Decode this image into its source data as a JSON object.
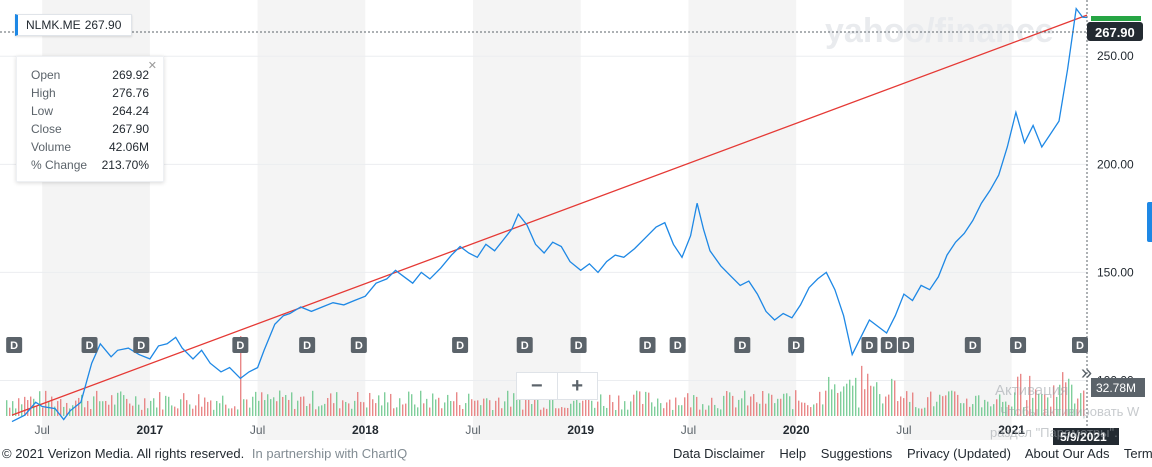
{
  "symbol": "NLMK.ME",
  "last_price": "267.90",
  "watermark": "yahoo/finance",
  "tooltip": {
    "rows": [
      {
        "label": "Open",
        "value": "269.92"
      },
      {
        "label": "High",
        "value": "276.76"
      },
      {
        "label": "Low",
        "value": "264.24"
      },
      {
        "label": "Close",
        "value": "267.90"
      },
      {
        "label": "Volume",
        "value": "42.06M"
      },
      {
        "label": "% Change",
        "value": "213.70%"
      }
    ],
    "close_icon": "close-icon"
  },
  "volume_label": "32.78M",
  "date_label": "5/9/2021",
  "zoom": {
    "minus": "−",
    "plus": "+"
  },
  "expand_icon": "»",
  "footer": {
    "copyright": "© 2021 Verizon Media. All rights reserved.",
    "partner": "In partnership with ChartIQ",
    "links": [
      "Data Disclaimer",
      "Help",
      "Suggestions",
      "Privacy (Updated)",
      "About Our Ads",
      "Terms (Upd"
    ]
  },
  "overlay_text": {
    "line1": "Активация",
    "line2": "Чтобы активировать W",
    "line3": "раздел \"Параметры\"."
  },
  "colors": {
    "price_line": "#1e88e5",
    "trend_line": "#e53935",
    "up_volume": "#69c68a",
    "down_volume": "#e57373",
    "shade": "#f4f4f4"
  },
  "chart_data": {
    "type": "line",
    "title": "",
    "xlabel": "",
    "ylabel": "",
    "ylim": [
      91,
      276
    ],
    "yticks": [
      100,
      150,
      200,
      250
    ],
    "ytick_labels": [
      "100.00",
      "150.00",
      "200.00",
      "250.00"
    ],
    "xticks": [
      {
        "t": 2016.5,
        "label": "Jul",
        "year": false
      },
      {
        "t": 2017.0,
        "label": "2017",
        "year": true
      },
      {
        "t": 2017.5,
        "label": "Jul",
        "year": false
      },
      {
        "t": 2018.0,
        "label": "2018",
        "year": true
      },
      {
        "t": 2018.5,
        "label": "Jul",
        "year": false
      },
      {
        "t": 2019.0,
        "label": "2019",
        "year": true
      },
      {
        "t": 2019.5,
        "label": "Jul",
        "year": false
      },
      {
        "t": 2020.0,
        "label": "2020",
        "year": true
      },
      {
        "t": 2020.5,
        "label": "Jul",
        "year": false
      },
      {
        "t": 2021.0,
        "label": "2021",
        "year": true
      }
    ],
    "series": [
      {
        "points": [
          [
            2016.36,
            81
          ],
          [
            2016.42,
            84
          ],
          [
            2016.47,
            90
          ],
          [
            2016.5,
            88
          ],
          [
            2016.56,
            87
          ],
          [
            2016.6,
            82
          ],
          [
            2016.63,
            86
          ],
          [
            2016.68,
            90
          ],
          [
            2016.73,
            108
          ],
          [
            2016.77,
            117
          ],
          [
            2016.82,
            111
          ],
          [
            2016.85,
            114
          ],
          [
            2016.9,
            115
          ],
          [
            2016.95,
            112
          ],
          [
            2017.0,
            110
          ],
          [
            2017.04,
            116
          ],
          [
            2017.08,
            117
          ],
          [
            2017.12,
            120
          ],
          [
            2017.15,
            115
          ],
          [
            2017.2,
            110
          ],
          [
            2017.24,
            114
          ],
          [
            2017.28,
            108
          ],
          [
            2017.33,
            104
          ],
          [
            2017.37,
            106
          ],
          [
            2017.42,
            101
          ],
          [
            2017.46,
            104
          ],
          [
            2017.5,
            106
          ],
          [
            2017.53,
            114
          ],
          [
            2017.58,
            126
          ],
          [
            2017.62,
            130
          ],
          [
            2017.65,
            131
          ],
          [
            2017.7,
            134
          ],
          [
            2017.75,
            132
          ],
          [
            2017.8,
            134
          ],
          [
            2017.85,
            136
          ],
          [
            2017.9,
            135
          ],
          [
            2017.95,
            137
          ],
          [
            2018.0,
            139
          ],
          [
            2018.05,
            145
          ],
          [
            2018.1,
            147
          ],
          [
            2018.14,
            151
          ],
          [
            2018.18,
            148
          ],
          [
            2018.22,
            145
          ],
          [
            2018.26,
            150
          ],
          [
            2018.3,
            147
          ],
          [
            2018.35,
            152
          ],
          [
            2018.4,
            158
          ],
          [
            2018.44,
            162
          ],
          [
            2018.48,
            159
          ],
          [
            2018.52,
            157
          ],
          [
            2018.56,
            163
          ],
          [
            2018.6,
            160
          ],
          [
            2018.64,
            165
          ],
          [
            2018.68,
            170
          ],
          [
            2018.71,
            177
          ],
          [
            2018.75,
            172
          ],
          [
            2018.79,
            163
          ],
          [
            2018.83,
            159
          ],
          [
            2018.87,
            164
          ],
          [
            2018.91,
            162
          ],
          [
            2018.95,
            155
          ],
          [
            2019.0,
            151
          ],
          [
            2019.04,
            154
          ],
          [
            2019.08,
            150
          ],
          [
            2019.12,
            155
          ],
          [
            2019.16,
            158
          ],
          [
            2019.2,
            157
          ],
          [
            2019.25,
            161
          ],
          [
            2019.3,
            166
          ],
          [
            2019.35,
            171
          ],
          [
            2019.39,
            173
          ],
          [
            2019.43,
            163
          ],
          [
            2019.47,
            157
          ],
          [
            2019.51,
            167
          ],
          [
            2019.54,
            182
          ],
          [
            2019.57,
            170
          ],
          [
            2019.6,
            160
          ],
          [
            2019.65,
            153
          ],
          [
            2019.7,
            148
          ],
          [
            2019.74,
            144
          ],
          [
            2019.78,
            146
          ],
          [
            2019.82,
            140
          ],
          [
            2019.86,
            132
          ],
          [
            2019.9,
            128
          ],
          [
            2019.94,
            131
          ],
          [
            2019.98,
            129
          ],
          [
            2020.02,
            135
          ],
          [
            2020.06,
            143
          ],
          [
            2020.1,
            147
          ],
          [
            2020.14,
            150
          ],
          [
            2020.18,
            142
          ],
          [
            2020.22,
            130
          ],
          [
            2020.26,
            112
          ],
          [
            2020.3,
            120
          ],
          [
            2020.34,
            128
          ],
          [
            2020.38,
            125
          ],
          [
            2020.42,
            122
          ],
          [
            2020.46,
            130
          ],
          [
            2020.5,
            140
          ],
          [
            2020.54,
            137
          ],
          [
            2020.58,
            144
          ],
          [
            2020.62,
            142
          ],
          [
            2020.66,
            148
          ],
          [
            2020.7,
            158
          ],
          [
            2020.74,
            164
          ],
          [
            2020.78,
            168
          ],
          [
            2020.82,
            174
          ],
          [
            2020.86,
            182
          ],
          [
            2020.9,
            188
          ],
          [
            2020.94,
            195
          ],
          [
            2020.98,
            208
          ],
          [
            2021.02,
            224
          ],
          [
            2021.06,
            210
          ],
          [
            2021.1,
            218
          ],
          [
            2021.14,
            208
          ],
          [
            2021.18,
            214
          ],
          [
            2021.22,
            220
          ],
          [
            2021.26,
            244
          ],
          [
            2021.3,
            272
          ],
          [
            2021.33,
            268
          ],
          [
            2021.35,
            267.9
          ]
        ]
      }
    ],
    "trend_line": [
      [
        2016.36,
        84
      ],
      [
        2021.35,
        269
      ]
    ],
    "dividend_marks": [
      2016.37,
      2016.72,
      2016.96,
      2017.42,
      2017.73,
      2017.97,
      2018.44,
      2018.74,
      2018.99,
      2019.31,
      2019.45,
      2019.75,
      2020.0,
      2020.34,
      2020.43,
      2020.51,
      2020.82,
      2021.03,
      2021.35
    ],
    "dividend_label": "D",
    "volume": {
      "visible_values": [
        "32.78M"
      ],
      "ylim": [
        0,
        80
      ],
      "bars_seed": 7
    }
  }
}
